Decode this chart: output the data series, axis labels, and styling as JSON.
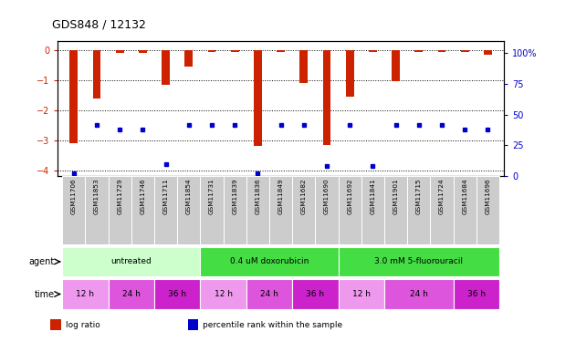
{
  "title": "GDS848 / 12132",
  "samples": [
    "GSM11706",
    "GSM11853",
    "GSM11729",
    "GSM11746",
    "GSM11711",
    "GSM11854",
    "GSM11731",
    "GSM11839",
    "GSM11836",
    "GSM11849",
    "GSM11682",
    "GSM11690",
    "GSM11692",
    "GSM11841",
    "GSM11901",
    "GSM11715",
    "GSM11724",
    "GSM11684",
    "GSM11696"
  ],
  "log_ratios": [
    -3.1,
    -1.6,
    -0.08,
    -0.08,
    -1.15,
    -0.55,
    -0.05,
    -0.05,
    -3.2,
    -0.05,
    -1.1,
    -3.15,
    -1.55,
    -0.05,
    -1.05,
    -0.05,
    -0.05,
    -0.05,
    -0.15
  ],
  "percentile_ranks": [
    2,
    42,
    38,
    38,
    10,
    42,
    42,
    42,
    2,
    42,
    42,
    8,
    42,
    8,
    42,
    42,
    42,
    38,
    38
  ],
  "ylim_left": [
    -4.2,
    0.3
  ],
  "ylim_right": [
    0,
    110
  ],
  "yticks_left": [
    0,
    -1,
    -2,
    -3,
    -4
  ],
  "yticks_right": [
    0,
    25,
    50,
    75,
    100
  ],
  "agent_data": [
    {
      "start": 0,
      "end": 6,
      "label": "untreated",
      "color": "#ccffcc"
    },
    {
      "start": 6,
      "end": 12,
      "label": "0.4 uM doxorubicin",
      "color": "#44dd44"
    },
    {
      "start": 12,
      "end": 19,
      "label": "3.0 mM 5-fluorouracil",
      "color": "#44dd44"
    }
  ],
  "time_data": [
    {
      "start": 0,
      "end": 2,
      "label": "12 h",
      "color": "#ee99ee"
    },
    {
      "start": 2,
      "end": 4,
      "label": "24 h",
      "color": "#dd55dd"
    },
    {
      "start": 4,
      "end": 6,
      "label": "36 h",
      "color": "#cc22cc"
    },
    {
      "start": 6,
      "end": 8,
      "label": "12 h",
      "color": "#ee99ee"
    },
    {
      "start": 8,
      "end": 10,
      "label": "24 h",
      "color": "#dd55dd"
    },
    {
      "start": 10,
      "end": 12,
      "label": "36 h",
      "color": "#cc22cc"
    },
    {
      "start": 12,
      "end": 14,
      "label": "12 h",
      "color": "#ee99ee"
    },
    {
      "start": 14,
      "end": 17,
      "label": "24 h",
      "color": "#dd55dd"
    },
    {
      "start": 17,
      "end": 19,
      "label": "36 h",
      "color": "#cc22cc"
    }
  ],
  "bar_color": "#cc2200",
  "dot_color": "#0000cc",
  "background_color": "#ffffff",
  "axis_color_left": "#cc2200",
  "axis_color_right": "#0000cc",
  "bar_width": 0.35,
  "legend_items": [
    {
      "color": "#cc2200",
      "label": "log ratio"
    },
    {
      "color": "#0000cc",
      "label": "percentile rank within the sample"
    }
  ]
}
